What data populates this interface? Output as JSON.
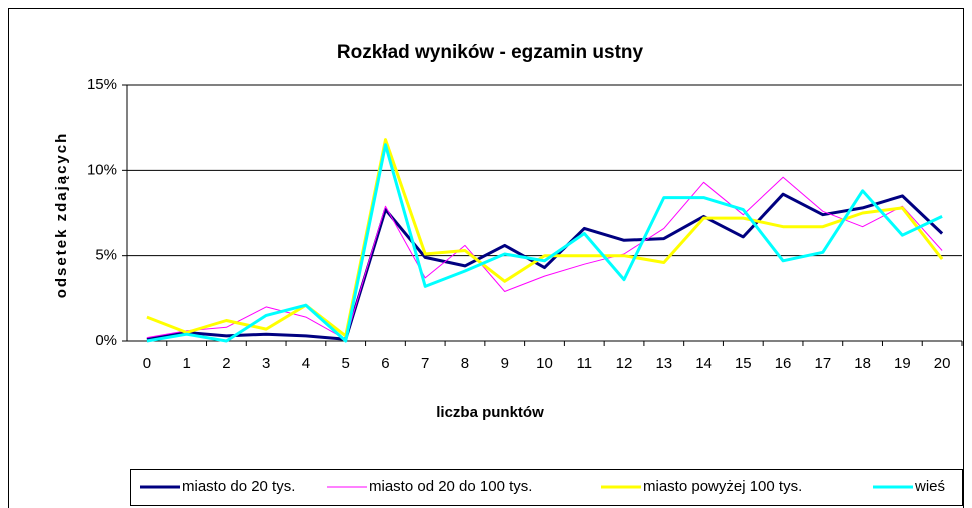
{
  "chart_data": {
    "type": "line",
    "title": "Rozkład wyników - egzamin ustny",
    "x_label": "liczba punktów",
    "y_label": "odsetek zdających",
    "categories": [
      "0",
      "1",
      "2",
      "3",
      "4",
      "5",
      "6",
      "7",
      "8",
      "9",
      "10",
      "11",
      "12",
      "13",
      "14",
      "15",
      "16",
      "17",
      "18",
      "19",
      "20"
    ],
    "ylim": [
      0,
      15
    ],
    "yticks": [
      {
        "value": 0,
        "label": "0%"
      },
      {
        "value": 5,
        "label": "5%"
      },
      {
        "value": 10,
        "label": "10%"
      },
      {
        "value": 15,
        "label": "15%"
      }
    ],
    "grid": true,
    "legend": "bottom",
    "series": [
      {
        "name": "miasto do 20 tys.",
        "color": "#000080",
        "values": [
          0.1,
          0.5,
          0.3,
          0.4,
          0.3,
          0.1,
          7.7,
          4.9,
          4.4,
          5.6,
          4.3,
          6.6,
          5.9,
          6.0,
          7.3,
          6.1,
          8.6,
          7.4,
          7.8,
          8.5,
          6.3
        ]
      },
      {
        "name": "miasto od 20 do 100 tys.",
        "color": "#ff00ff",
        "values": [
          0.2,
          0.6,
          0.8,
          2.0,
          1.4,
          0.1,
          7.9,
          3.7,
          5.6,
          2.9,
          3.8,
          4.5,
          5.1,
          6.6,
          9.3,
          7.4,
          9.6,
          7.6,
          6.7,
          7.9,
          5.3
        ]
      },
      {
        "name": "miasto powyżej 100 tys.",
        "color": "#ffff00",
        "values": [
          1.4,
          0.5,
          1.2,
          0.7,
          2.1,
          0.3,
          11.8,
          5.1,
          5.3,
          3.5,
          5.0,
          5.0,
          5.0,
          4.6,
          7.2,
          7.2,
          6.7,
          6.7,
          7.5,
          7.8,
          4.8
        ]
      },
      {
        "name": "wieś",
        "color": "#00ffff",
        "values": [
          0.0,
          0.4,
          0.0,
          1.5,
          2.1,
          0.0,
          11.5,
          3.2,
          4.1,
          5.1,
          4.7,
          6.3,
          3.6,
          8.4,
          8.4,
          7.7,
          4.7,
          5.2,
          8.8,
          6.2,
          7.3
        ]
      }
    ]
  }
}
